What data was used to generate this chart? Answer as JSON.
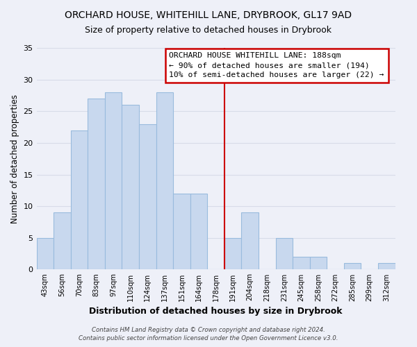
{
  "title": "ORCHARD HOUSE, WHITEHILL LANE, DRYBROOK, GL17 9AD",
  "subtitle": "Size of property relative to detached houses in Drybrook",
  "xlabel": "Distribution of detached houses by size in Drybrook",
  "ylabel": "Number of detached properties",
  "bar_labels": [
    "43sqm",
    "56sqm",
    "70sqm",
    "83sqm",
    "97sqm",
    "110sqm",
    "124sqm",
    "137sqm",
    "151sqm",
    "164sqm",
    "178sqm",
    "191sqm",
    "204sqm",
    "218sqm",
    "231sqm",
    "245sqm",
    "258sqm",
    "272sqm",
    "285sqm",
    "299sqm",
    "312sqm"
  ],
  "bar_values": [
    5,
    9,
    22,
    27,
    28,
    26,
    23,
    28,
    12,
    12,
    0,
    5,
    9,
    0,
    5,
    2,
    2,
    0,
    1,
    0,
    1
  ],
  "bar_color": "#c8d8ee",
  "bar_edge_color": "#99bbdd",
  "vline_color": "#cc0000",
  "ylim": [
    0,
    35
  ],
  "yticks": [
    0,
    5,
    10,
    15,
    20,
    25,
    30,
    35
  ],
  "annotation_title": "ORCHARD HOUSE WHITEHILL LANE: 188sqm",
  "annotation_line1": "← 90% of detached houses are smaller (194)",
  "annotation_line2": "10% of semi-detached houses are larger (22) →",
  "footer_line1": "Contains HM Land Registry data © Crown copyright and database right 2024.",
  "footer_line2": "Contains public sector information licensed under the Open Government Licence v3.0.",
  "background_color": "#eef0f8",
  "grid_color": "#d8dce8",
  "title_fontsize": 10,
  "subtitle_fontsize": 9
}
